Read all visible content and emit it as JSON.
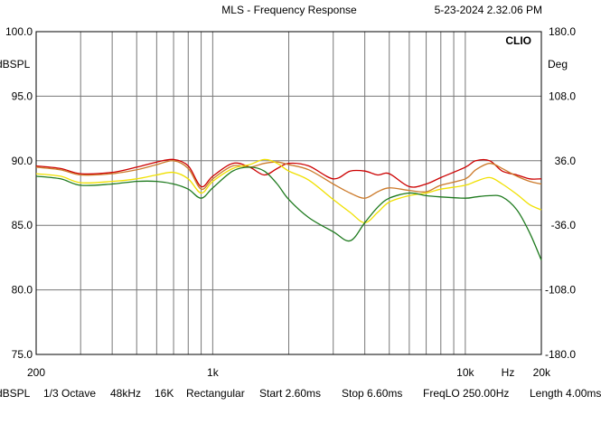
{
  "window": {
    "title": "MLS - Frequency Response",
    "timestamp": "5-23-2024 2.32.06 PM"
  },
  "brand": "CLIO",
  "chart_data": {
    "type": "line",
    "title": "MLS - Frequency Response",
    "x_scale": "log",
    "xlim": [
      200,
      20000
    ],
    "ylim": [
      75,
      100
    ],
    "ylim_right": [
      -180,
      180
    ],
    "ylabel": "dBSPL",
    "ylabel_right": "Deg",
    "xlabel": "Hz",
    "yticks": [
      "100.0",
      "95.0",
      "90.0",
      "85.0",
      "80.0",
      "75.0"
    ],
    "yticks_right": [
      "180.0",
      "108.0",
      "36.0",
      "-36.0",
      "-108.0",
      "-180.0"
    ],
    "xticks": [
      {
        "value": 200,
        "label": "200"
      },
      {
        "value": 1000,
        "label": "1k"
      },
      {
        "value": 10000,
        "label": "10k"
      },
      {
        "value": 20000,
        "label": "20k"
      }
    ],
    "grid": true,
    "series": [
      {
        "color": "#cc0000",
        "x": [
          200,
          250,
          300,
          400,
          500,
          600,
          700,
          800,
          900,
          1000,
          1200,
          1400,
          1600,
          1800,
          2000,
          2400,
          3000,
          3500,
          4000,
          4500,
          5000,
          6000,
          7000,
          8000,
          10000,
          11000,
          12500,
          14000,
          16000,
          18000,
          20000
        ],
        "y": [
          89.6,
          89.4,
          89.0,
          89.1,
          89.5,
          89.9,
          90.1,
          89.6,
          88.0,
          88.8,
          89.8,
          89.5,
          88.9,
          89.4,
          89.8,
          89.6,
          88.6,
          89.2,
          89.2,
          88.9,
          89.0,
          88.0,
          88.2,
          88.7,
          89.5,
          90.0,
          90.0,
          89.2,
          88.9,
          88.6,
          88.6
        ]
      },
      {
        "color": "#cc7a2a",
        "x": [
          200,
          250,
          300,
          400,
          500,
          600,
          700,
          800,
          900,
          1000,
          1200,
          1400,
          1600,
          1800,
          2000,
          2400,
          3000,
          3500,
          4000,
          4500,
          5000,
          6000,
          7000,
          8000,
          10000,
          11000,
          12500,
          14000,
          16000,
          18000,
          20000
        ],
        "y": [
          89.5,
          89.3,
          88.9,
          89.0,
          89.3,
          89.7,
          90.0,
          89.4,
          87.8,
          88.6,
          89.6,
          89.5,
          89.8,
          89.9,
          89.7,
          89.3,
          88.2,
          87.5,
          87.1,
          87.6,
          87.9,
          87.7,
          87.6,
          88.1,
          88.6,
          89.3,
          89.8,
          89.4,
          88.8,
          88.4,
          88.2
        ]
      },
      {
        "color": "#f0e000",
        "x": [
          200,
          250,
          300,
          400,
          500,
          600,
          700,
          800,
          900,
          1000,
          1200,
          1400,
          1600,
          1800,
          2000,
          2400,
          3000,
          3500,
          4000,
          4500,
          5000,
          6000,
          7000,
          8000,
          10000,
          11000,
          12500,
          14000,
          16000,
          18000,
          20000
        ],
        "y": [
          89.0,
          88.8,
          88.3,
          88.4,
          88.6,
          88.9,
          89.1,
          88.6,
          87.5,
          88.4,
          89.4,
          89.7,
          90.1,
          89.8,
          89.2,
          88.5,
          87.0,
          86.0,
          85.2,
          86.0,
          86.8,
          87.3,
          87.5,
          87.8,
          88.1,
          88.4,
          88.7,
          88.2,
          87.4,
          86.6,
          86.2
        ]
      },
      {
        "color": "#1e7a1e",
        "x": [
          200,
          250,
          300,
          400,
          500,
          600,
          700,
          800,
          900,
          1000,
          1200,
          1400,
          1600,
          1800,
          2000,
          2400,
          3000,
          3500,
          4000,
          4500,
          5000,
          6000,
          7000,
          8000,
          10000,
          11000,
          12500,
          14000,
          16000,
          18000,
          20000
        ],
        "y": [
          88.8,
          88.6,
          88.1,
          88.2,
          88.4,
          88.4,
          88.2,
          87.8,
          87.1,
          87.9,
          89.2,
          89.5,
          89.2,
          88.2,
          87.0,
          85.6,
          84.5,
          83.8,
          85.2,
          86.4,
          87.1,
          87.5,
          87.3,
          87.2,
          87.1,
          87.2,
          87.3,
          87.2,
          86.2,
          84.4,
          82.3
        ]
      }
    ]
  },
  "status_bar": {
    "unit": "dBSPL",
    "smoothing": "1/3 Octave",
    "sample_rate": "48kHz",
    "size": "16K",
    "window": "Rectangular",
    "start": "Start 2.60ms",
    "stop": "Stop 6.60ms",
    "freq_lo": "FreqLO 250.00Hz",
    "length": "Length 4.00ms"
  }
}
